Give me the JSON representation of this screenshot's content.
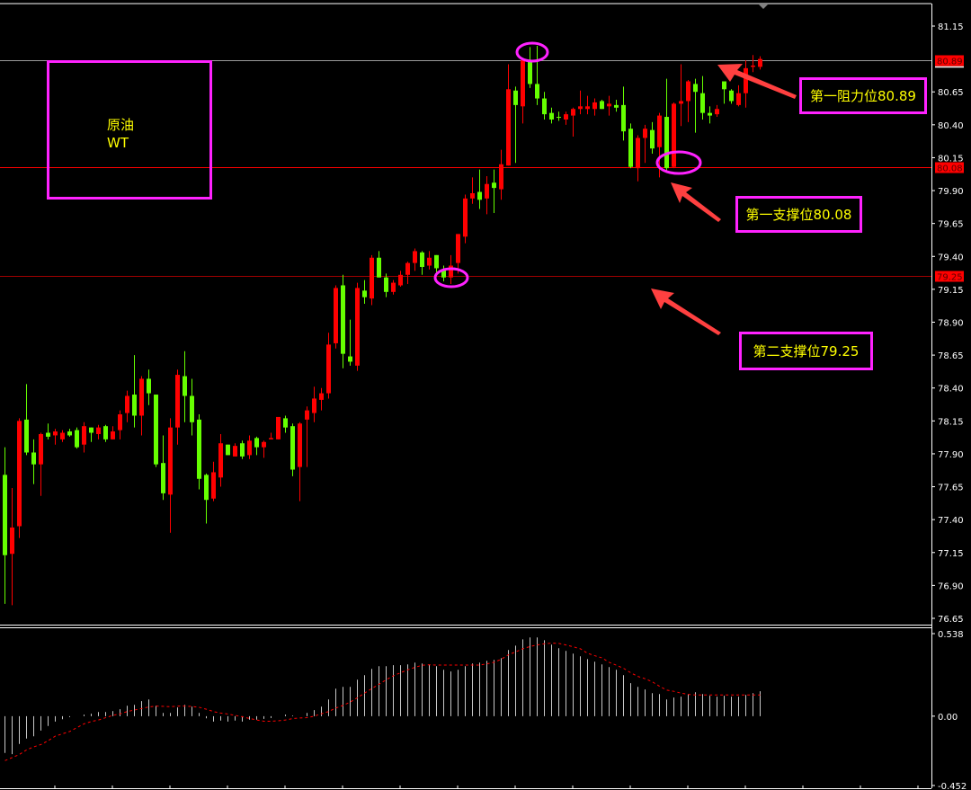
{
  "colors": {
    "background": "#000000",
    "bull": "#ff0000",
    "bear": "#66ff00",
    "annotation": "#ff22ff",
    "label_text": "#ffff00",
    "arrow": "#ff4040",
    "macd_hist": "#c8c8c8",
    "macd_signal": "#ff0000",
    "axis": "#ffffff"
  },
  "symbol_box": {
    "line1": "原油",
    "line2": "WT"
  },
  "annotations": {
    "resistance1": "第一阻力位80.89",
    "support1": "第一支撑位80.08",
    "support2": "第二支撑位79.25"
  },
  "chart_data": [
    {
      "type": "candlestick",
      "ylim": [
        76.65,
        81.15
      ],
      "y_ticks": [
        "81.15",
        "80.65",
        "80.40",
        "80.15",
        "79.90",
        "79.65",
        "79.40",
        "79.15",
        "78.90",
        "78.65",
        "78.40",
        "78.15",
        "77.90",
        "77.65",
        "77.40",
        "77.15",
        "76.90",
        "76.65"
      ],
      "levels": [
        {
          "label": "80.89",
          "value": 80.89,
          "color": "#9a9a9a"
        },
        {
          "label": "80.08",
          "value": 80.08,
          "color": "#ff0000"
        },
        {
          "label": "79.25",
          "value": 79.25,
          "color": "#a00000"
        }
      ],
      "ohlc": [
        [
          77.74,
          77.95,
          76.76,
          77.13
        ],
        [
          77.14,
          77.64,
          76.75,
          77.34
        ],
        [
          77.35,
          78.17,
          77.26,
          78.15
        ],
        [
          78.16,
          78.43,
          77.89,
          77.91
        ],
        [
          77.91,
          78.01,
          77.67,
          77.82
        ],
        [
          77.82,
          78.06,
          77.58,
          78.05
        ],
        [
          78.06,
          78.13,
          78.01,
          78.03
        ],
        [
          78.04,
          78.09,
          77.97,
          78.07
        ],
        [
          78.01,
          78.08,
          77.99,
          78.06
        ],
        [
          78.07,
          78.09,
          78.03,
          78.04
        ],
        [
          78.08,
          78.1,
          77.94,
          77.95
        ],
        [
          77.97,
          78.14,
          77.91,
          78.11
        ],
        [
          78.1,
          78.1,
          77.99,
          78.06
        ],
        [
          78.05,
          78.12,
          78.01,
          78.1
        ],
        [
          78.11,
          78.12,
          77.99,
          78.01
        ],
        [
          78.01,
          78.11,
          78.01,
          78.07
        ],
        [
          78.08,
          78.23,
          78.01,
          78.2
        ],
        [
          78.21,
          78.38,
          78.14,
          78.34
        ],
        [
          78.35,
          78.65,
          78.1,
          78.19
        ],
        [
          78.19,
          78.49,
          78.04,
          78.47
        ],
        [
          78.47,
          78.54,
          78.27,
          78.36
        ],
        [
          78.35,
          78.35,
          77.8,
          77.82
        ],
        [
          77.83,
          78.04,
          77.55,
          77.6
        ],
        [
          77.59,
          78.17,
          77.3,
          78.1
        ],
        [
          78.1,
          78.54,
          77.97,
          78.5
        ],
        [
          78.49,
          78.68,
          78.14,
          78.34
        ],
        [
          78.34,
          78.47,
          78.04,
          78.14
        ],
        [
          78.16,
          78.2,
          77.63,
          77.71
        ],
        [
          77.74,
          77.75,
          77.37,
          77.55
        ],
        [
          77.56,
          77.84,
          77.54,
          77.76
        ],
        [
          77.72,
          78.05,
          77.65,
          77.98
        ],
        [
          77.97,
          77.97,
          77.89,
          77.89
        ],
        [
          77.88,
          77.98,
          77.88,
          77.96
        ],
        [
          77.98,
          78.0,
          77.86,
          77.88
        ],
        [
          77.89,
          78.04,
          77.86,
          78.0
        ],
        [
          78.02,
          78.03,
          77.89,
          77.95
        ],
        [
          77.95,
          78.0,
          77.87,
          77.99
        ],
        [
          78.01,
          78.06,
          78.01,
          78.02
        ],
        [
          78.01,
          78.18,
          78.01,
          78.18
        ],
        [
          78.17,
          78.19,
          78.06,
          78.1
        ],
        [
          78.11,
          78.13,
          77.73,
          77.78
        ],
        [
          77.8,
          78.14,
          77.54,
          78.13
        ],
        [
          78.16,
          78.26,
          77.8,
          78.23
        ],
        [
          78.21,
          78.41,
          78.14,
          78.32
        ],
        [
          78.31,
          78.4,
          78.23,
          78.36
        ],
        [
          78.36,
          78.82,
          78.32,
          78.73
        ],
        [
          78.74,
          79.18,
          78.7,
          79.16
        ],
        [
          79.18,
          79.26,
          78.55,
          78.66
        ],
        [
          78.64,
          78.92,
          78.57,
          78.6
        ],
        [
          78.57,
          79.2,
          78.53,
          79.16
        ],
        [
          79.14,
          79.22,
          79.04,
          79.09
        ],
        [
          79.08,
          79.41,
          79.03,
          79.39
        ],
        [
          79.39,
          79.44,
          79.24,
          79.24
        ],
        [
          79.24,
          79.27,
          79.09,
          79.13
        ],
        [
          79.13,
          79.22,
          79.11,
          79.2
        ],
        [
          79.18,
          79.29,
          79.17,
          79.26
        ],
        [
          79.26,
          79.36,
          79.19,
          79.35
        ],
        [
          79.35,
          79.46,
          79.29,
          79.44
        ],
        [
          79.43,
          79.44,
          79.26,
          79.32
        ],
        [
          79.33,
          79.44,
          79.3,
          79.39
        ],
        [
          79.41,
          79.41,
          79.28,
          79.31
        ],
        [
          79.3,
          79.33,
          79.21,
          79.24
        ],
        [
          79.24,
          79.41,
          79.19,
          79.33
        ],
        [
          79.35,
          79.57,
          79.27,
          79.57
        ],
        [
          79.55,
          79.87,
          79.5,
          79.84
        ],
        [
          79.84,
          80.0,
          79.8,
          79.88
        ],
        [
          79.89,
          80.06,
          79.76,
          79.83
        ],
        [
          79.84,
          80.01,
          79.72,
          79.95
        ],
        [
          79.96,
          80.06,
          79.73,
          79.92
        ],
        [
          79.91,
          80.21,
          79.83,
          80.1
        ],
        [
          80.09,
          80.86,
          80.09,
          80.67
        ],
        [
          80.66,
          80.69,
          80.11,
          80.55
        ],
        [
          80.54,
          80.9,
          80.41,
          80.89
        ],
        [
          80.88,
          80.99,
          80.68,
          80.71
        ],
        [
          80.71,
          81.0,
          80.55,
          80.6
        ],
        [
          80.6,
          80.65,
          80.44,
          80.48
        ],
        [
          80.49,
          80.53,
          80.41,
          80.44
        ],
        [
          80.46,
          80.5,
          80.43,
          80.46
        ],
        [
          80.44,
          80.5,
          80.4,
          80.48
        ],
        [
          80.47,
          80.53,
          80.31,
          80.52
        ],
        [
          80.52,
          80.66,
          80.48,
          80.54
        ],
        [
          80.52,
          80.62,
          80.48,
          80.54
        ],
        [
          80.52,
          80.6,
          80.47,
          80.57
        ],
        [
          80.58,
          80.59,
          80.52,
          80.52
        ],
        [
          80.54,
          80.62,
          80.47,
          80.56
        ],
        [
          80.55,
          80.59,
          80.5,
          80.53
        ],
        [
          80.55,
          80.69,
          80.28,
          80.35
        ],
        [
          80.37,
          80.41,
          80.07,
          80.08
        ],
        [
          80.07,
          80.32,
          79.97,
          80.3
        ],
        [
          80.3,
          80.4,
          80.11,
          80.37
        ],
        [
          80.36,
          80.42,
          80.18,
          80.22
        ],
        [
          80.23,
          80.49,
          80.0,
          80.47
        ],
        [
          80.46,
          80.75,
          80.05,
          80.07
        ],
        [
          80.08,
          80.57,
          80.07,
          80.56
        ],
        [
          80.56,
          80.86,
          80.39,
          80.58
        ],
        [
          80.58,
          80.74,
          80.42,
          80.73
        ],
        [
          80.71,
          80.75,
          80.34,
          80.65
        ],
        [
          80.64,
          80.77,
          80.44,
          80.49
        ],
        [
          80.49,
          80.54,
          80.41,
          80.47
        ],
        [
          80.48,
          80.55,
          80.46,
          80.52
        ],
        [
          80.73,
          80.73,
          80.56,
          80.67
        ],
        [
          80.66,
          80.67,
          80.56,
          80.58
        ],
        [
          80.55,
          80.7,
          80.54,
          80.64
        ],
        [
          80.64,
          80.89,
          80.53,
          80.83
        ],
        [
          80.84,
          80.93,
          80.8,
          80.85
        ],
        [
          80.84,
          80.92,
          80.82,
          80.9
        ]
      ]
    },
    {
      "type": "bar+line",
      "ylim": [
        -0.452,
        0.538
      ],
      "y_ticks": [
        "0.538",
        "0.00",
        "-0.452"
      ],
      "histogram": [
        -0.24,
        -0.248,
        -0.181,
        -0.146,
        -0.131,
        -0.094,
        -0.064,
        -0.035,
        -0.02,
        -0.006,
        0.0,
        0.01,
        0.016,
        0.027,
        0.027,
        0.033,
        0.045,
        0.068,
        0.074,
        0.098,
        0.109,
        0.068,
        0.021,
        0.021,
        0.057,
        0.074,
        0.062,
        0.021,
        -0.014,
        -0.035,
        -0.029,
        -0.035,
        -0.029,
        -0.035,
        -0.023,
        -0.023,
        -0.018,
        -0.012,
        0.0,
        0.01,
        0.004,
        0.0,
        0.021,
        0.039,
        0.062,
        0.109,
        0.179,
        0.191,
        0.191,
        0.238,
        0.267,
        0.308,
        0.326,
        0.326,
        0.332,
        0.332,
        0.337,
        0.349,
        0.343,
        0.337,
        0.326,
        0.302,
        0.291,
        0.302,
        0.326,
        0.343,
        0.349,
        0.361,
        0.367,
        0.378,
        0.431,
        0.46,
        0.501,
        0.513,
        0.513,
        0.495,
        0.466,
        0.443,
        0.425,
        0.408,
        0.39,
        0.372,
        0.355,
        0.337,
        0.32,
        0.302,
        0.267,
        0.215,
        0.191,
        0.174,
        0.15,
        0.144,
        0.109,
        0.121,
        0.127,
        0.144,
        0.156,
        0.144,
        0.133,
        0.127,
        0.133,
        0.127,
        0.127,
        0.138,
        0.15,
        0.162
      ],
      "signal": [
        -0.29,
        -0.27,
        -0.25,
        -0.22,
        -0.2,
        -0.185,
        -0.16,
        -0.13,
        -0.115,
        -0.1,
        -0.075,
        -0.05,
        -0.035,
        -0.025,
        -0.01,
        0.005,
        0.015,
        0.03,
        0.04,
        0.05,
        0.06,
        0.066,
        0.064,
        0.062,
        0.065,
        0.066,
        0.063,
        0.058,
        0.045,
        0.03,
        0.02,
        0.014,
        0.005,
        -0.004,
        -0.015,
        -0.025,
        -0.033,
        -0.033,
        -0.03,
        -0.025,
        -0.016,
        -0.012,
        -0.01,
        0.0,
        0.016,
        0.03,
        0.053,
        0.07,
        0.092,
        0.12,
        0.15,
        0.18,
        0.208,
        0.237,
        0.263,
        0.283,
        0.302,
        0.318,
        0.332,
        0.335,
        0.333,
        0.333,
        0.333,
        0.333,
        0.333,
        0.333,
        0.333,
        0.341,
        0.351,
        0.371,
        0.4,
        0.419,
        0.439,
        0.454,
        0.464,
        0.472,
        0.476,
        0.474,
        0.464,
        0.452,
        0.439,
        0.41,
        0.394,
        0.38,
        0.351,
        0.332,
        0.312,
        0.283,
        0.259,
        0.244,
        0.224,
        0.195,
        0.17,
        0.162,
        0.15,
        0.142,
        0.138,
        0.138,
        0.138,
        0.138,
        0.138,
        0.138,
        0.138,
        0.138,
        0.138,
        0.138
      ]
    }
  ]
}
